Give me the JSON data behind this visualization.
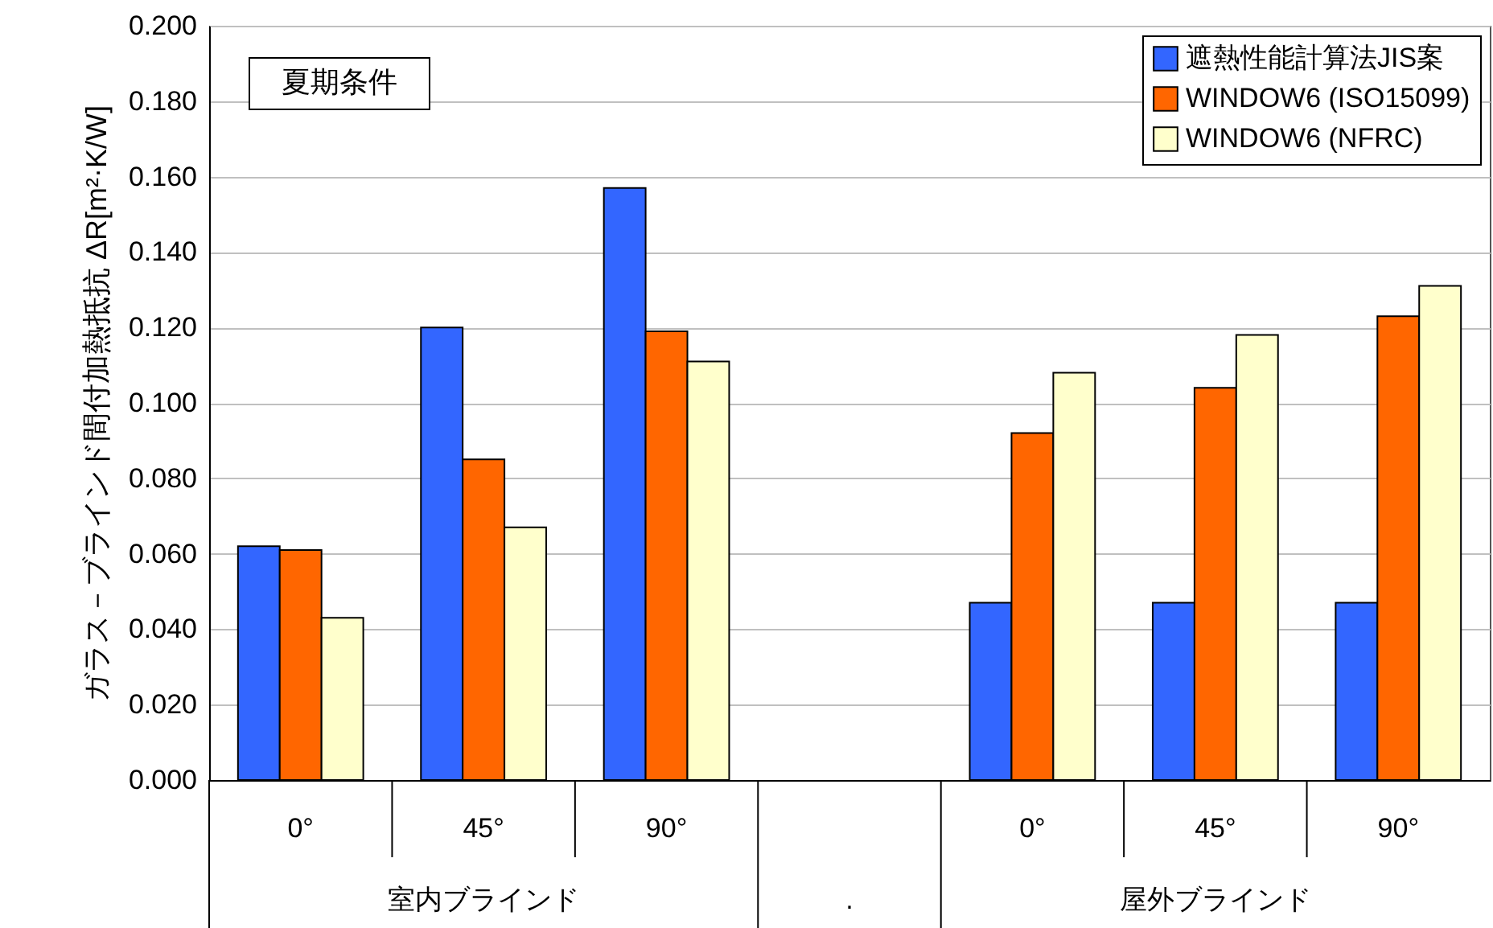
{
  "chart_data": {
    "type": "bar",
    "ylabel": "ガラス－ブラインド間付加熱抵抗 ΔR[m²·K/W]",
    "categories": [
      "0°",
      "45°",
      "90°",
      null,
      "0°",
      "45°",
      "90°"
    ],
    "series": [
      {
        "name": "遮熱性能計算法JIS案",
        "color": "#3366ff",
        "values": [
          0.062,
          0.12,
          0.157,
          null,
          0.047,
          0.047,
          0.047
        ]
      },
      {
        "name": "WINDOW6 (ISO15099)",
        "color": "#ff6600",
        "values": [
          0.061,
          0.085,
          0.119,
          null,
          0.092,
          0.104,
          0.123
        ]
      },
      {
        "name": "WINDOW6 (NFRC)",
        "color": "#ffffcc",
        "values": [
          0.043,
          0.067,
          0.111,
          null,
          0.108,
          0.118,
          0.131
        ]
      }
    ],
    "ylim": [
      0,
      0.2
    ],
    "yticks": [
      {
        "value": 0,
        "label": "0.000"
      },
      {
        "value": 0.02,
        "label": "0.020"
      },
      {
        "value": 0.04,
        "label": "0.040"
      },
      {
        "value": 0.06,
        "label": "0.060"
      },
      {
        "value": 0.08,
        "label": "0.080"
      },
      {
        "value": 0.1,
        "label": "0.100"
      },
      {
        "value": 0.12,
        "label": "0.120"
      },
      {
        "value": 0.14,
        "label": "0.140"
      },
      {
        "value": 0.16,
        "label": "0.160"
      },
      {
        "value": 0.18,
        "label": "0.180"
      },
      {
        "value": 0.2,
        "label": "0.200"
      }
    ],
    "grid": "y",
    "legend": "top right",
    "annotations": [
      "夏期条件",
      "室内ブラインド",
      ".",
      "屋外ブラインド"
    ]
  }
}
